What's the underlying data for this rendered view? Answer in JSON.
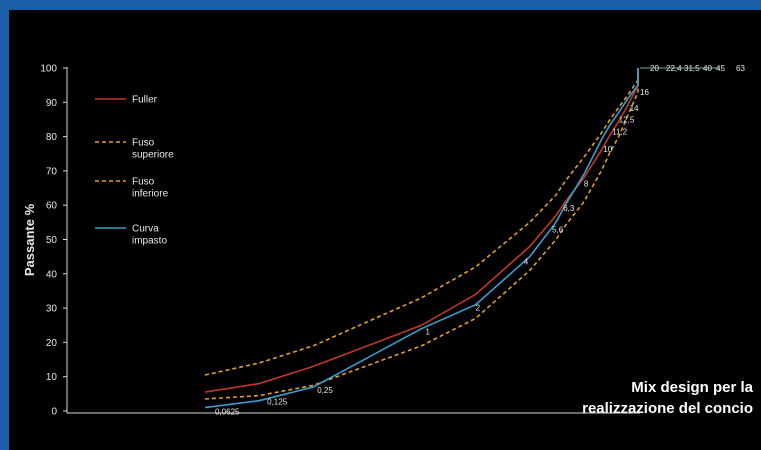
{
  "caption": {
    "line1": "Mix design per la",
    "line2": "realizzazione del concio"
  },
  "chart_data": {
    "type": "line",
    "ylabel": "Passante %",
    "ylim": [
      0,
      100
    ],
    "yticks": [
      0,
      10,
      20,
      30,
      40,
      50,
      60,
      70,
      80,
      90,
      100
    ],
    "grid": false,
    "legend_placement": "top-left",
    "x_scale": "log",
    "x": [
      0.0625,
      0.125,
      0.25,
      1,
      2,
      4,
      5.6,
      6.3,
      8,
      10,
      11.2,
      12.5,
      14,
      16,
      20,
      22.4,
      31.5,
      40,
      45,
      63
    ],
    "sieve_labels": [
      "0,0625",
      "0,125",
      "0,25",
      "1",
      "2",
      "4",
      "5,6",
      "6,3",
      "8",
      "10",
      "11,2",
      "12,5",
      "14",
      "16",
      "20",
      "22,4",
      "31,5",
      "40",
      "45",
      "63"
    ],
    "series": [
      {
        "name": "Fuller",
        "color": "#c0392b",
        "dash": "solid",
        "values": [
          5.5,
          8,
          13,
          25,
          34,
          48,
          57,
          61,
          68,
          76,
          80.5,
          84.5,
          89,
          95,
          100,
          100,
          100,
          100,
          100,
          100
        ]
      },
      {
        "name": "Fuso superiore",
        "color": "#e0a030",
        "dash": "dashed",
        "values": [
          10.5,
          14,
          19,
          33,
          42,
          55,
          63,
          67,
          74,
          81,
          85,
          88.5,
          92,
          96.5,
          100,
          100,
          100,
          100,
          100,
          100
        ]
      },
      {
        "name": "Fuso inferiore",
        "color": "#e0a030",
        "dash": "dashed",
        "values": [
          3.5,
          4.5,
          7.5,
          19,
          27,
          41,
          50,
          54,
          61,
          70,
          75.5,
          80,
          86,
          93,
          100,
          100,
          100,
          100,
          100,
          100
        ]
      },
      {
        "name": "Curva impasto",
        "color": "#3a9fd0",
        "dash": "solid",
        "values": [
          1,
          3,
          7,
          24,
          31,
          45,
          55,
          60,
          69,
          79,
          83.5,
          87,
          91,
          95,
          100,
          100,
          100,
          100,
          100,
          100
        ]
      }
    ],
    "legend_entries": [
      {
        "line1": "Fuller",
        "line2": ""
      },
      {
        "line1": "Fuso",
        "line2": "superiore"
      },
      {
        "line1": "Fuso",
        "line2": "inferiore"
      },
      {
        "line1": "Curva",
        "line2": "impasto"
      }
    ]
  }
}
